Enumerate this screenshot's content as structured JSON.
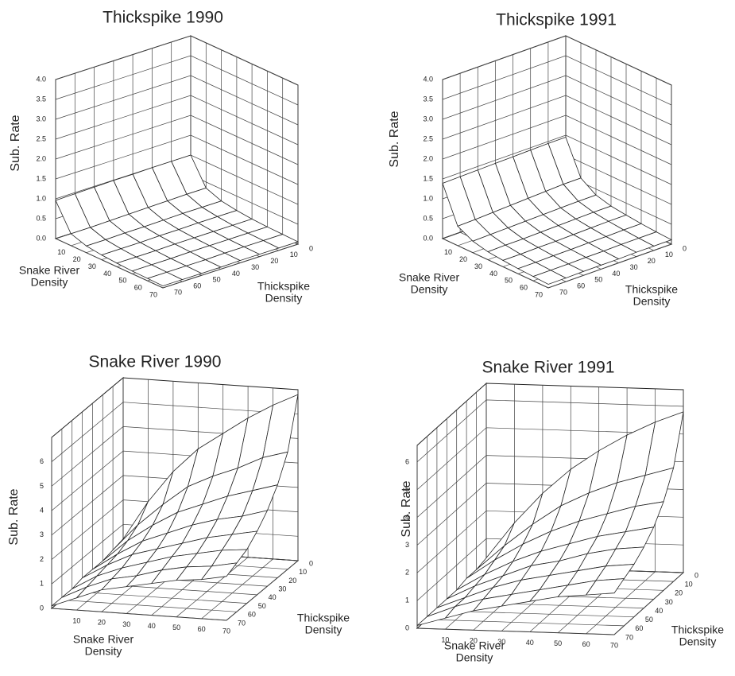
{
  "chart_data": [
    {
      "type": "surface",
      "title": "Thickspike 1990",
      "z_label": "Sub. Rate",
      "x_label": "Snake River Density",
      "y_label": "Thickspike Density",
      "x": [
        0,
        10,
        20,
        30,
        40,
        50,
        60,
        70
      ],
      "y": [
        0,
        10,
        20,
        30,
        40,
        50,
        60,
        70
      ],
      "z": [
        [
          1.0,
          0.35,
          0.2,
          0.14,
          0.1,
          0.08,
          0.07,
          0.06
        ],
        [
          1.0,
          0.35,
          0.2,
          0.14,
          0.1,
          0.08,
          0.07,
          0.06
        ],
        [
          1.0,
          0.34,
          0.2,
          0.14,
          0.1,
          0.08,
          0.07,
          0.06
        ],
        [
          0.99,
          0.33,
          0.19,
          0.13,
          0.1,
          0.08,
          0.07,
          0.06
        ],
        [
          0.99,
          0.32,
          0.18,
          0.13,
          0.1,
          0.08,
          0.06,
          0.05
        ],
        [
          0.98,
          0.31,
          0.18,
          0.12,
          0.09,
          0.07,
          0.06,
          0.05
        ],
        [
          0.97,
          0.3,
          0.17,
          0.12,
          0.09,
          0.07,
          0.06,
          0.05
        ],
        [
          0.96,
          0.3,
          0.17,
          0.12,
          0.09,
          0.07,
          0.06,
          0.05
        ]
      ],
      "xlim": [
        0,
        70
      ],
      "ylim": [
        0,
        70
      ],
      "zlim": [
        0,
        4
      ],
      "xticks": [
        10,
        20,
        30,
        40,
        50,
        60,
        70
      ],
      "yticks": [
        0,
        10,
        20,
        30,
        40,
        50,
        60,
        70
      ],
      "zticks": [
        {
          "value": 0,
          "label": "0.0"
        },
        0.5,
        {
          "value": 1,
          "label": "1.0"
        },
        1.5,
        {
          "value": 2,
          "label": "2.0"
        },
        2.5,
        {
          "value": 3,
          "label": "3.0"
        },
        3.5,
        {
          "value": 4,
          "label": "4.0"
        }
      ]
    },
    {
      "type": "surface",
      "title": "Thickspike 1991",
      "z_label": "Sub. Rate",
      "x_label": "Snake River Density",
      "y_label": "Thickspike Density",
      "x": [
        0,
        10,
        20,
        30,
        40,
        50,
        60,
        70
      ],
      "y": [
        0,
        10,
        20,
        30,
        40,
        50,
        60,
        70
      ],
      "z": [
        [
          1.45,
          0.6,
          0.35,
          0.25,
          0.2,
          0.16,
          0.13,
          0.11
        ],
        [
          1.45,
          0.6,
          0.35,
          0.25,
          0.2,
          0.16,
          0.13,
          0.11
        ],
        [
          1.44,
          0.58,
          0.34,
          0.24,
          0.19,
          0.15,
          0.13,
          0.11
        ],
        [
          1.43,
          0.56,
          0.33,
          0.23,
          0.18,
          0.15,
          0.12,
          0.1
        ],
        [
          1.42,
          0.54,
          0.32,
          0.22,
          0.17,
          0.14,
          0.12,
          0.1
        ],
        [
          1.41,
          0.52,
          0.31,
          0.21,
          0.17,
          0.14,
          0.11,
          0.1
        ],
        [
          1.4,
          0.5,
          0.3,
          0.21,
          0.16,
          0.13,
          0.11,
          0.09
        ],
        [
          1.39,
          0.49,
          0.29,
          0.2,
          0.16,
          0.13,
          0.11,
          0.09
        ]
      ],
      "xlim": [
        0,
        70
      ],
      "ylim": [
        0,
        70
      ],
      "zlim": [
        0,
        4
      ],
      "xticks": [
        10,
        20,
        30,
        40,
        50,
        60,
        70
      ],
      "yticks": [
        0,
        10,
        20,
        30,
        40,
        50,
        60,
        70
      ],
      "zticks": [
        {
          "value": 0,
          "label": "0.0"
        },
        0.5,
        {
          "value": 1,
          "label": "1.0"
        },
        1.5,
        {
          "value": 2,
          "label": "2.0"
        },
        2.5,
        {
          "value": 3,
          "label": "3.0"
        },
        3.5,
        {
          "value": 4,
          "label": "4.0"
        }
      ]
    },
    {
      "type": "surface",
      "title": "Snake River 1990",
      "z_label": "Sub. Rate",
      "x_label": "Snake River Density",
      "y_label": "Thickspike Density",
      "x": [
        0,
        10,
        20,
        30,
        40,
        50,
        60,
        70
      ],
      "y": [
        0,
        10,
        20,
        30,
        40,
        50,
        60,
        70
      ],
      "z": [
        [
          0.4,
          2.0,
          3.3,
          4.3,
          5.0,
          5.7,
          6.3,
          6.8
        ],
        [
          0.3,
          1.4,
          2.3,
          3.1,
          3.6,
          4.0,
          4.5,
          4.8
        ],
        [
          0.2,
          1.1,
          1.8,
          2.4,
          2.8,
          3.2,
          3.5,
          3.8
        ],
        [
          0.2,
          0.9,
          1.5,
          1.9,
          2.3,
          2.6,
          2.8,
          3.1
        ],
        [
          0.2,
          0.8,
          1.3,
          1.6,
          1.9,
          2.2,
          2.4,
          2.6
        ],
        [
          0.1,
          0.7,
          1.1,
          1.4,
          1.7,
          1.9,
          2.1,
          2.2
        ],
        [
          0.1,
          0.6,
          1.0,
          1.2,
          1.5,
          1.7,
          1.8,
          2.0
        ],
        [
          0.1,
          0.5,
          0.9,
          1.1,
          1.3,
          1.5,
          1.6,
          1.8
        ]
      ],
      "xlim": [
        0,
        70
      ],
      "ylim": [
        0,
        70
      ],
      "zlim": [
        0,
        7
      ],
      "xticks": [
        10,
        20,
        30,
        40,
        50,
        60,
        70
      ],
      "yticks": [
        0,
        10,
        20,
        30,
        40,
        50,
        60,
        70
      ],
      "zticks": [
        0,
        1,
        2,
        3,
        4,
        5,
        6
      ]
    },
    {
      "type": "surface",
      "title": "Snake River 1991",
      "z_label": "Sub. Rate",
      "x_label": "Snake River Density",
      "y_label": "Thickspike Density",
      "x": [
        0,
        10,
        20,
        30,
        40,
        50,
        60,
        70
      ],
      "y": [
        0,
        10,
        20,
        30,
        40,
        50,
        60,
        70
      ],
      "z": [
        [
          0.3,
          1.6,
          2.7,
          3.6,
          4.3,
          4.9,
          5.4,
          5.8
        ],
        [
          0.2,
          1.1,
          1.9,
          2.6,
          3.1,
          3.5,
          3.8,
          4.1
        ],
        [
          0.2,
          0.9,
          1.5,
          2.0,
          2.4,
          2.7,
          3.0,
          3.2
        ],
        [
          0.1,
          0.7,
          1.2,
          1.6,
          1.9,
          2.2,
          2.4,
          2.6
        ],
        [
          0.1,
          0.6,
          1.0,
          1.4,
          1.6,
          1.9,
          2.1,
          2.2
        ],
        [
          0.1,
          0.5,
          0.9,
          1.2,
          1.4,
          1.6,
          1.8,
          1.9
        ],
        [
          0.1,
          0.5,
          0.8,
          1.0,
          1.2,
          1.4,
          1.6,
          1.7
        ],
        [
          0.1,
          0.4,
          0.7,
          0.9,
          1.1,
          1.3,
          1.4,
          1.5
        ]
      ],
      "xlim": [
        0,
        70
      ],
      "ylim": [
        0,
        70
      ],
      "zlim": [
        0,
        6.6
      ],
      "xticks": [
        10,
        20,
        30,
        40,
        50,
        60,
        70
      ],
      "yticks": [
        0,
        10,
        20,
        30,
        40,
        50,
        60,
        70
      ],
      "zticks": [
        0,
        1,
        2,
        3,
        4,
        5,
        6
      ]
    }
  ]
}
